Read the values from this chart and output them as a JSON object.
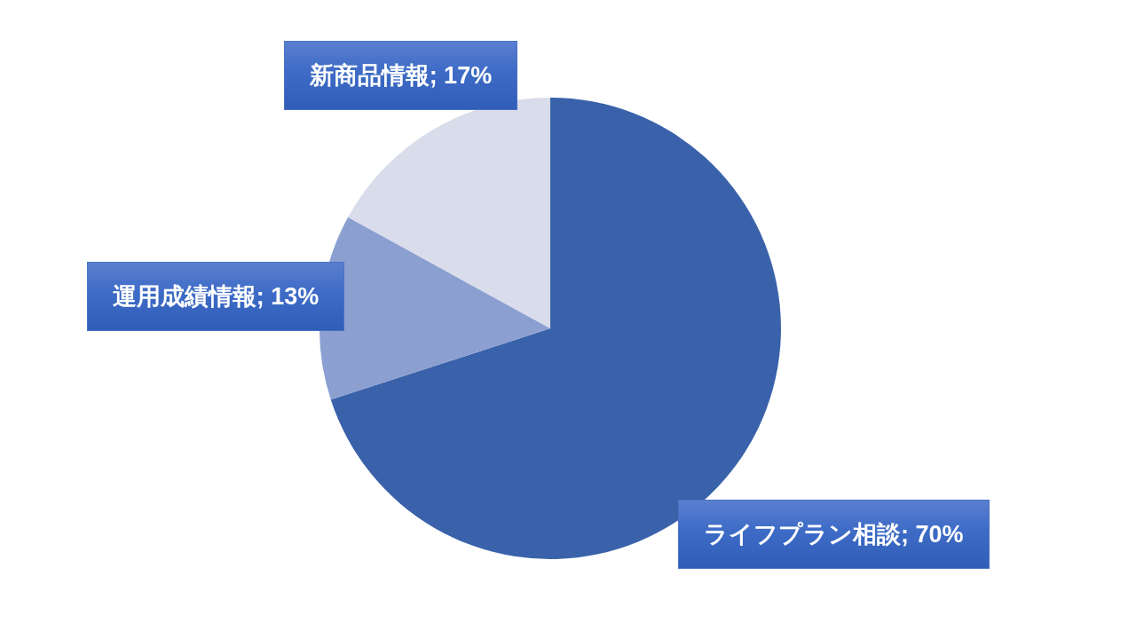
{
  "chart_data": {
    "type": "pie",
    "categories": [
      "ライフプラン相談",
      "運用成績情報",
      "新商品情報"
    ],
    "values": [
      70,
      13,
      17
    ],
    "colors": [
      "#3a62aa",
      "#8b9fd1",
      "#d9dcea"
    ],
    "value_labels": [
      "70%",
      "13%",
      "17%"
    ]
  }
}
